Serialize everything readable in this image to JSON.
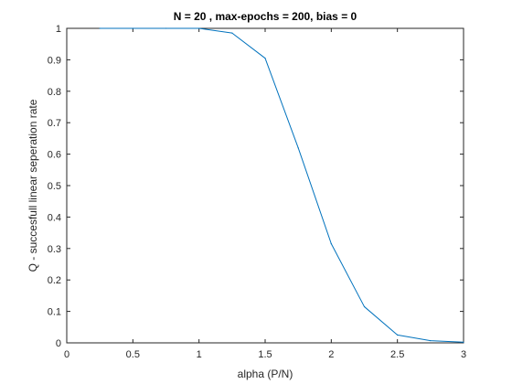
{
  "chart_data": {
    "type": "line",
    "title": "N = 20 , max-epochs = 200, bias = 0",
    "xlabel": "alpha (P/N)",
    "ylabel": "Q - succesfull linear seperation rate",
    "xlim": [
      0,
      3
    ],
    "ylim": [
      0,
      1
    ],
    "x_ticks": [
      "0",
      "0.5",
      "1",
      "1.5",
      "2",
      "2.5",
      "3"
    ],
    "y_ticks": [
      "0",
      "0.1",
      "0.2",
      "0.3",
      "0.4",
      "0.5",
      "0.6",
      "0.7",
      "0.8",
      "0.9",
      "1"
    ],
    "grid": false,
    "series": [
      {
        "x": [
          0.25,
          0.5,
          0.75,
          1.0,
          1.25,
          1.5,
          1.75,
          2.0,
          2.25,
          2.5,
          2.75,
          3.0
        ],
        "y": [
          1.0,
          1.0,
          1.0,
          1.0,
          0.985,
          0.905,
          0.62,
          0.315,
          0.115,
          0.025,
          0.007,
          0.002
        ],
        "color": "#0072bd"
      }
    ]
  }
}
